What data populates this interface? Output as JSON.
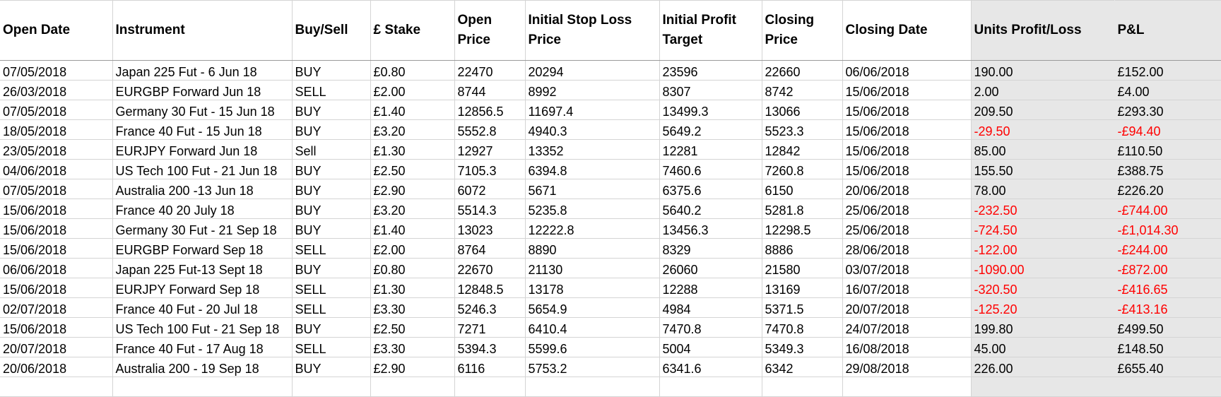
{
  "headers": [
    "Open Date",
    "Instrument",
    "Buy/Sell",
    "£ Stake",
    "Open Price",
    "Initial Stop Loss Price",
    "Initial Profit Target",
    "Closing Price",
    "Closing Date",
    "Units Profit/Loss",
    "P&L"
  ],
  "rows": [
    {
      "cells": [
        "07/05/2018",
        "Japan 225 Fut - 6 Jun 18",
        "BUY",
        "£0.80",
        "22470",
        "20294",
        "23596",
        "22660",
        "06/06/2018",
        "190.00",
        "£152.00"
      ],
      "negative": false
    },
    {
      "cells": [
        "26/03/2018",
        "EURGBP Forward Jun 18",
        "SELL",
        "£2.00",
        "8744",
        "8992",
        "8307",
        "8742",
        "15/06/2018",
        "2.00",
        "£4.00"
      ],
      "negative": false
    },
    {
      "cells": [
        "07/05/2018",
        "Germany 30 Fut - 15 Jun 18",
        "BUY",
        "£1.40",
        "12856.5",
        "11697.4",
        "13499.3",
        "13066",
        "15/06/2018",
        "209.50",
        "£293.30"
      ],
      "negative": false
    },
    {
      "cells": [
        "18/05/2018",
        "France 40 Fut - 15 Jun 18",
        "BUY",
        "£3.20",
        "5552.8",
        "4940.3",
        "5649.2",
        "5523.3",
        "15/06/2018",
        "-29.50",
        "-£94.40"
      ],
      "negative": true
    },
    {
      "cells": [
        "23/05/2018",
        "EURJPY Forward Jun 18",
        "Sell",
        "£1.30",
        "12927",
        "13352",
        "12281",
        "12842",
        "15/06/2018",
        "85.00",
        "£110.50"
      ],
      "negative": false
    },
    {
      "cells": [
        "04/06/2018",
        "US Tech 100 Fut - 21 Jun 18",
        "BUY",
        "£2.50",
        "7105.3",
        "6394.8",
        "7460.6",
        "7260.8",
        "15/06/2018",
        "155.50",
        "£388.75"
      ],
      "negative": false
    },
    {
      "cells": [
        "07/05/2018",
        "Australia 200 -13 Jun 18",
        "BUY",
        "£2.90",
        "6072",
        "5671",
        "6375.6",
        "6150",
        "20/06/2018",
        "78.00",
        "£226.20"
      ],
      "negative": false
    },
    {
      "cells": [
        "15/06/2018",
        "France 40 20 July 18",
        "BUY",
        "£3.20",
        "5514.3",
        "5235.8",
        "5640.2",
        "5281.8",
        "25/06/2018",
        "-232.50",
        "-£744.00"
      ],
      "negative": true
    },
    {
      "cells": [
        "15/06/2018",
        "Germany 30 Fut - 21 Sep 18",
        "BUY",
        "£1.40",
        "13023",
        "12222.8",
        "13456.3",
        "12298.5",
        "25/06/2018",
        "-724.50",
        "-£1,014.30"
      ],
      "negative": true
    },
    {
      "cells": [
        "15/06/2018",
        "EURGBP Forward Sep 18",
        "SELL",
        "£2.00",
        "8764",
        "8890",
        "8329",
        "8886",
        "28/06/2018",
        "-122.00",
        "-£244.00"
      ],
      "negative": true
    },
    {
      "cells": [
        "06/06/2018",
        "Japan 225 Fut-13 Sept 18",
        "BUY",
        "£0.80",
        "22670",
        "21130",
        "26060",
        "21580",
        "03/07/2018",
        "-1090.00",
        "-£872.00"
      ],
      "negative": true
    },
    {
      "cells": [
        "15/06/2018",
        "EURJPY Forward Sep 18",
        "SELL",
        "£1.30",
        "12848.5",
        "13178",
        "12288",
        "13169",
        "16/07/2018",
        "-320.50",
        "-£416.65"
      ],
      "negative": true
    },
    {
      "cells": [
        "02/07/2018",
        "France 40 Fut - 20 Jul 18",
        "SELL",
        "£3.30",
        "5246.3",
        "5654.9",
        "4984",
        "5371.5",
        "20/07/2018",
        "-125.20",
        "-£413.16"
      ],
      "negative": true
    },
    {
      "cells": [
        "15/06/2018",
        "US Tech 100 Fut - 21 Sep 18",
        "BUY",
        "£2.50",
        "7271",
        "6410.4",
        "7470.8",
        "7470.8",
        "24/07/2018",
        "199.80",
        "£499.50"
      ],
      "negative": false
    },
    {
      "cells": [
        "20/07/2018",
        "France 40 Fut - 17 Aug 18",
        "SELL",
        "£3.30",
        "5394.3",
        "5599.6",
        "5004",
        "5349.3",
        "16/08/2018",
        "45.00",
        "£148.50"
      ],
      "negative": false
    },
    {
      "cells": [
        "20/06/2018",
        "Australia 200 - 19 Sep 18",
        "BUY",
        "£2.90",
        "6116",
        "5753.2",
        "6341.6",
        "6342",
        "29/08/2018",
        "226.00",
        "£655.40"
      ],
      "negative": false
    }
  ],
  "colors": {
    "negative": "#ff0000",
    "shaded_column": "#e7e7e7",
    "gridline": "#d4d4d4"
  }
}
